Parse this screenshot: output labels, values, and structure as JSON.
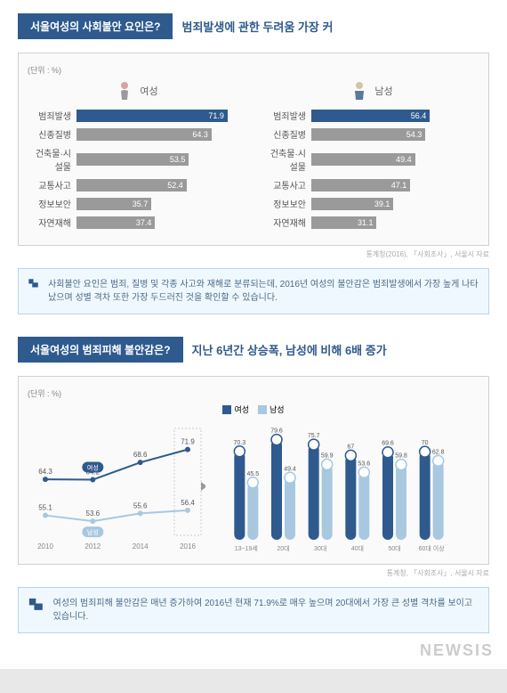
{
  "section1": {
    "title": "서울여성의 사회불안 요인은?",
    "subtitle": "범죄발생에 관한 두려움 가장 커",
    "unit": "(단위 : %)",
    "panels": [
      {
        "label": "여성",
        "color": "#3a5f8a",
        "icon": "female",
        "rows": [
          {
            "label": "범죄발생",
            "value": 71.9
          },
          {
            "label": "신종질병",
            "value": 64.3
          },
          {
            "label": "건축물·시설물",
            "value": 53.5
          },
          {
            "label": "교통사고",
            "value": 52.4
          },
          {
            "label": "정보보안",
            "value": 35.7
          },
          {
            "label": "자연재해",
            "value": 37.4
          }
        ]
      },
      {
        "label": "남성",
        "color": "#3a5f8a",
        "icon": "male",
        "rows": [
          {
            "label": "범죄발생",
            "value": 56.4
          },
          {
            "label": "신종질병",
            "value": 54.3
          },
          {
            "label": "건축물·시설물",
            "value": 49.4
          },
          {
            "label": "교통사고",
            "value": 47.1
          },
          {
            "label": "정보보안",
            "value": 39.1
          },
          {
            "label": "자연재해",
            "value": 31.1
          }
        ]
      }
    ],
    "firstBarColor": "#2e5a8e",
    "otherBarColor": "#9a9a9a",
    "source": "통계청(2016), 「사회조사」, 서울시 자료",
    "callout": "사회불안 요인은 범죄, 질병 및 각종 사고와 재해로 분류되는데, 2016년 여성의 불안감은 범죄발생에서 가장 높게 나타났으며 성별 격차 또한 가장 두드러진 것을 확인할 수 있습니다."
  },
  "section2": {
    "title": "서울여성의 범죄피해 불안감은?",
    "subtitle": "지난 6년간 상승폭, 남성에 비해 6배 증가",
    "unit": "(단위 : %)",
    "legend": [
      {
        "label": "여성",
        "color": "#2e5a8e"
      },
      {
        "label": "남성",
        "color": "#a8c8e0"
      }
    ],
    "line": {
      "years": [
        "2010",
        "2012",
        "2014",
        "2016"
      ],
      "female": {
        "values": [
          64.3,
          64.2,
          68.6,
          71.9
        ],
        "color": "#2e5a8e",
        "label": "여성"
      },
      "male": {
        "values": [
          55.1,
          53.6,
          55.6,
          56.4
        ],
        "color": "#a8c8e0",
        "label": "남성"
      },
      "ylim": [
        50,
        75
      ]
    },
    "grouped": {
      "categories": [
        "13~19세",
        "20대",
        "30대",
        "40대",
        "50대",
        "60대 이상"
      ],
      "female": {
        "values": [
          70.3,
          79.6,
          75.7,
          67.0,
          69.6,
          70.0
        ],
        "color": "#2e5a8e"
      },
      "male": {
        "values": [
          45.5,
          49.4,
          59.9,
          53.6,
          59.8,
          62.8
        ],
        "color": "#a8c8e0"
      },
      "ylim": [
        0,
        85
      ]
    },
    "source": "통계청, 「사회조사」, 서울시 자료",
    "callout": "여성의 범죄피해 불안감은 매년 증가하여 2016년 현재 71.9%로 매우 높으며 20대에서 가장 큰 성별 격차를 보이고 있습니다."
  },
  "watermark": "NEWSIS"
}
